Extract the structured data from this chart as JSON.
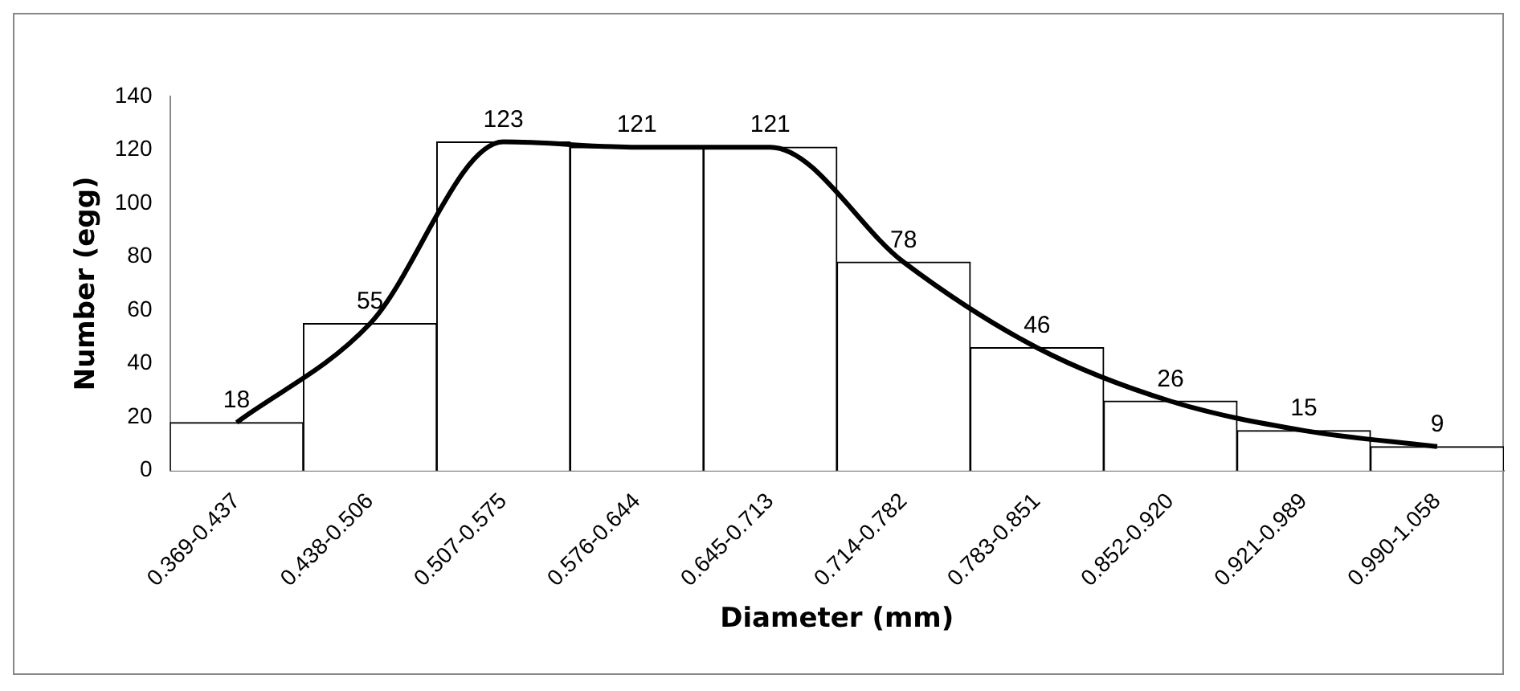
{
  "chart_data": {
    "type": "bar",
    "xlabel": "Diameter (mm)",
    "ylabel": "Number (egg)",
    "categories": [
      "0.369-0.437",
      "0.438-0.506",
      "0.507-0.575",
      "0.576-0.644",
      "0.645-0.713",
      "0.714-0.782",
      "0.783-0.851",
      "0.852-0.920",
      "0.921-0.989",
      "0.990-1.058"
    ],
    "series": [
      {
        "color": "#ffffff",
        "values": [
          18,
          55,
          123,
          121,
          121,
          78,
          46,
          26,
          15,
          9
        ],
        "value_labels": [
          "18",
          "55",
          "123",
          "121",
          "121",
          "78",
          "46",
          "26",
          "15",
          "9"
        ]
      },
      {
        "type": "line",
        "color": "#000000",
        "values": [
          18,
          55,
          123,
          121,
          121,
          78,
          46,
          26,
          15,
          9
        ]
      }
    ],
    "ylim": [
      0,
      140
    ],
    "yticks": [
      0,
      20,
      40,
      60,
      80,
      100,
      120,
      140
    ],
    "grid": false,
    "legend": false,
    "marker": "none",
    "line_style": "solid"
  }
}
